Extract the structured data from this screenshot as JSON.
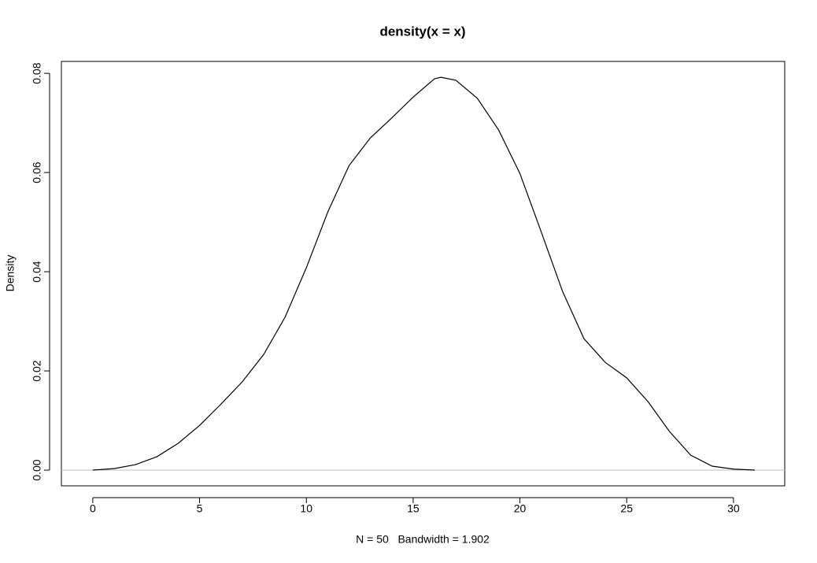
{
  "chart_data": {
    "type": "line",
    "title": "density(x = x)",
    "x_label": "N = 50   Bandwidth = 1.902",
    "y_label": "Density",
    "x": [
      0,
      1,
      2,
      3,
      4,
      5,
      6,
      7,
      8,
      9,
      10,
      11,
      12,
      13,
      14,
      15,
      16,
      16.3,
      17,
      18,
      19,
      20,
      21,
      22,
      23,
      24,
      25,
      26,
      27,
      28,
      29,
      30,
      31
    ],
    "series": [
      {
        "name": "density",
        "color": "#000000",
        "values": [
          0,
          0.0003,
          0.0011,
          0.0027,
          0.0054,
          0.009,
          0.0133,
          0.0178,
          0.0233,
          0.0308,
          0.0408,
          0.052,
          0.0614,
          0.067,
          0.071,
          0.0752,
          0.0789,
          0.0792,
          0.0786,
          0.075,
          0.0686,
          0.0598,
          0.048,
          0.036,
          0.0265,
          0.0217,
          0.0186,
          0.0138,
          0.0078,
          0.003,
          0.0008,
          0.0002,
          0
        ]
      }
    ],
    "xlim": [
      -1.47,
      32.4
    ],
    "ylim": [
      -0.00317,
      0.0824
    ],
    "xticks": [
      0,
      5,
      10,
      15,
      20,
      25,
      30
    ],
    "yticks": [
      {
        "value": 0,
        "label": "0.00"
      },
      0.02,
      0.04,
      0.06,
      0.08
    ],
    "zero_line": true,
    "zero_line_color": "#bebebe"
  }
}
